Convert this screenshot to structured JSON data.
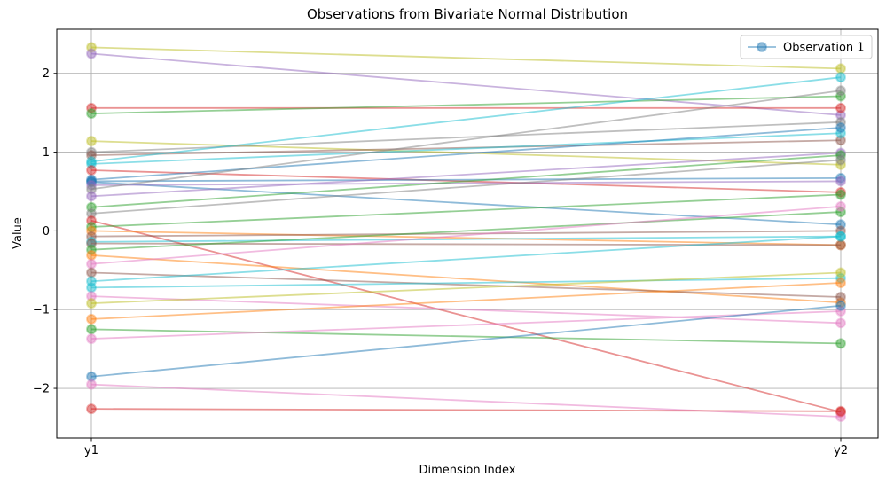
{
  "figure": {
    "title": "Observations from Bivariate Normal Distribution",
    "xlabel": "Dimension Index",
    "ylabel": "Value",
    "legend_label": "Observation 1"
  },
  "chart_data": {
    "type": "line",
    "title": "Observations from Bivariate Normal Distribution",
    "xlabel": "Dimension Index",
    "ylabel": "Value",
    "x_categories": [
      "y1",
      "y2"
    ],
    "yticks": [
      2,
      1,
      0,
      -1,
      -2
    ],
    "ylim": [
      -2.63,
      2.56
    ],
    "grid": true,
    "line_alpha": 0.5,
    "marker": "o",
    "legend": {
      "label": "Observation 1",
      "position": "upper right",
      "color": "#1f77b4"
    },
    "palette": [
      "#1f77b4",
      "#ff7f0e",
      "#2ca02c",
      "#d62728",
      "#9467bd",
      "#8c564b",
      "#e377c2",
      "#7f7f7f",
      "#bcbd22",
      "#17becf"
    ],
    "observations": [
      {
        "y1": 2.33,
        "y2": 2.06,
        "color": "#bcbd22"
      },
      {
        "y1": 2.25,
        "y2": 1.47,
        "color": "#9467bd"
      },
      {
        "y1": 1.56,
        "y2": 1.56,
        "color": "#d62728"
      },
      {
        "y1": 1.49,
        "y2": 1.71,
        "color": "#2ca02c"
      },
      {
        "y1": 1.14,
        "y2": 0.84,
        "color": "#bcbd22"
      },
      {
        "y1": 1.0,
        "y2": 1.38,
        "color": "#7f7f7f"
      },
      {
        "y1": 0.96,
        "y2": 1.15,
        "color": "#8c564b"
      },
      {
        "y1": 0.88,
        "y2": 1.95,
        "color": "#17becf"
      },
      {
        "y1": 0.85,
        "y2": 1.24,
        "color": "#17becf"
      },
      {
        "y1": 0.77,
        "y2": 0.49,
        "color": "#d62728"
      },
      {
        "y1": 0.65,
        "y2": 1.31,
        "color": "#1f77b4"
      },
      {
        "y1": 0.63,
        "y2": 0.67,
        "color": "#1f77b4"
      },
      {
        "y1": 0.62,
        "y2": 0.08,
        "color": "#1f77b4"
      },
      {
        "y1": 0.58,
        "y2": 0.63,
        "color": "#9467bd"
      },
      {
        "y1": 0.53,
        "y2": 1.78,
        "color": "#7f7f7f"
      },
      {
        "y1": 0.44,
        "y2": 0.99,
        "color": "#9467bd"
      },
      {
        "y1": 0.3,
        "y2": 0.96,
        "color": "#2ca02c"
      },
      {
        "y1": 0.22,
        "y2": 0.9,
        "color": "#7f7f7f"
      },
      {
        "y1": 0.13,
        "y2": -2.3,
        "color": "#d62728"
      },
      {
        "y1": 0.05,
        "y2": 0.46,
        "color": "#2ca02c"
      },
      {
        "y1": 0.0,
        "y2": -0.18,
        "color": "#ff7f0e"
      },
      {
        "y1": -0.07,
        "y2": 0.0,
        "color": "#8c564b"
      },
      {
        "y1": -0.14,
        "y2": -0.07,
        "color": "#17becf"
      },
      {
        "y1": -0.16,
        "y2": -0.18,
        "color": "#8c564b"
      },
      {
        "y1": -0.24,
        "y2": 0.24,
        "color": "#2ca02c"
      },
      {
        "y1": -0.31,
        "y2": -0.91,
        "color": "#ff7f0e"
      },
      {
        "y1": -0.42,
        "y2": 0.31,
        "color": "#e377c2"
      },
      {
        "y1": -0.53,
        "y2": -0.84,
        "color": "#8c564b"
      },
      {
        "y1": -0.64,
        "y2": -0.07,
        "color": "#17becf"
      },
      {
        "y1": -0.72,
        "y2": -0.6,
        "color": "#17becf"
      },
      {
        "y1": -0.83,
        "y2": -1.17,
        "color": "#e377c2"
      },
      {
        "y1": -0.92,
        "y2": -0.53,
        "color": "#bcbd22"
      },
      {
        "y1": -1.12,
        "y2": -0.66,
        "color": "#ff7f0e"
      },
      {
        "y1": -1.25,
        "y2": -1.43,
        "color": "#2ca02c"
      },
      {
        "y1": -1.37,
        "y2": -1.02,
        "color": "#e377c2"
      },
      {
        "y1": -1.85,
        "y2": -0.95,
        "color": "#1f77b4"
      },
      {
        "y1": -1.95,
        "y2": -2.36,
        "color": "#e377c2"
      },
      {
        "y1": -2.26,
        "y2": -2.29,
        "color": "#d62728"
      }
    ]
  }
}
